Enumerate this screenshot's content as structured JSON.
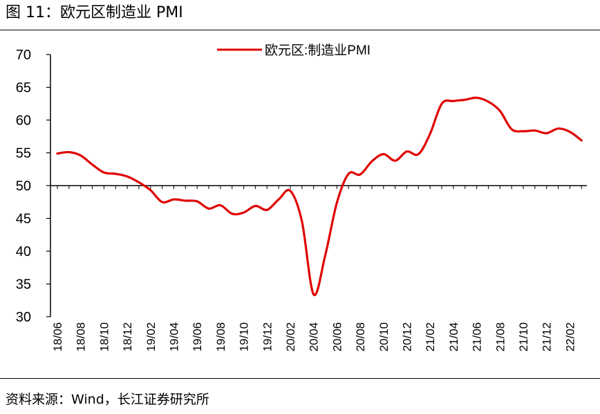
{
  "figure": {
    "title": "图  11：欧元区制造业 PMI",
    "source": "资料来源：Wind，长江证券研究所"
  },
  "colors": {
    "series": "#e00000",
    "axis": "#000000"
  },
  "chart_data": {
    "type": "line",
    "title": "欧元区制造业 PMI",
    "xlabel": "",
    "ylabel": "",
    "ylim": [
      30,
      70
    ],
    "yticks": [
      "70",
      "65",
      "60",
      "55",
      "50",
      "45",
      "40",
      "35",
      "30"
    ],
    "reference_line": 50,
    "legend": {
      "placement": "top-center",
      "label": "欧元区:制造业PMI"
    },
    "x_tick_labels": [
      "18/06",
      "18/08",
      "18/10",
      "18/12",
      "19/02",
      "19/04",
      "19/06",
      "19/08",
      "19/10",
      "19/12",
      "20/02",
      "20/04",
      "20/06",
      "20/08",
      "20/10",
      "20/12",
      "21/02",
      "21/04",
      "21/06",
      "21/08",
      "21/10",
      "21/12",
      "22/02"
    ],
    "x": [
      "18/06",
      "18/07",
      "18/08",
      "18/09",
      "18/10",
      "18/11",
      "18/12",
      "19/01",
      "19/02",
      "19/03",
      "19/04",
      "19/05",
      "19/06",
      "19/07",
      "19/08",
      "19/09",
      "19/10",
      "19/11",
      "19/12",
      "20/01",
      "20/02",
      "20/03",
      "20/04",
      "20/05",
      "20/06",
      "20/07",
      "20/08",
      "20/09",
      "20/10",
      "20/11",
      "20/12",
      "21/01",
      "21/02",
      "21/03",
      "21/04",
      "21/05",
      "21/06",
      "21/07",
      "21/08",
      "21/09",
      "21/10",
      "21/11",
      "21/12",
      "22/01",
      "22/02",
      "22/03"
    ],
    "series": [
      {
        "name": "欧元区:制造业PMI",
        "values": [
          54.9,
          55.1,
          54.6,
          53.2,
          52.0,
          51.8,
          51.4,
          50.5,
          49.3,
          47.5,
          47.9,
          47.7,
          47.6,
          46.5,
          47.0,
          45.7,
          45.9,
          46.9,
          46.3,
          47.9,
          49.2,
          44.5,
          33.4,
          39.4,
          47.4,
          51.8,
          51.7,
          53.7,
          54.8,
          53.8,
          55.2,
          54.8,
          57.9,
          62.5,
          62.9,
          63.1,
          63.4,
          62.8,
          61.4,
          58.6,
          58.3,
          58.4,
          58.0,
          58.7,
          58.2,
          56.9
        ]
      }
    ]
  }
}
